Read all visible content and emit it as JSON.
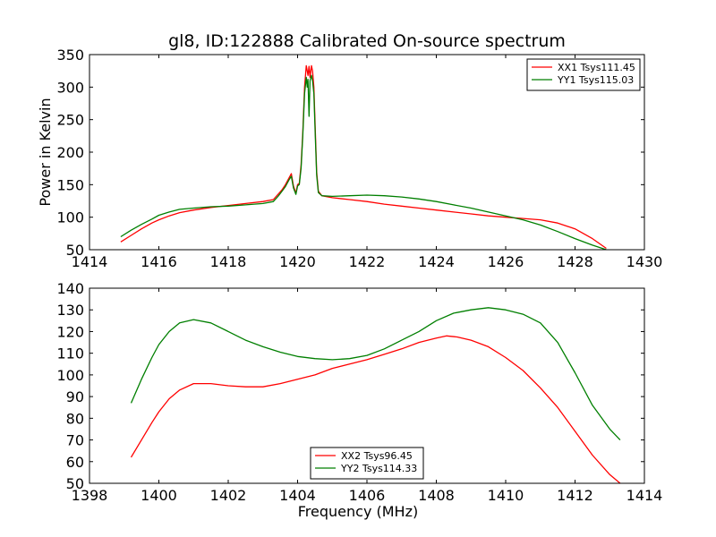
{
  "figure": {
    "title": "gl8, ID:122888 Calibrated On-source spectrum"
  },
  "chart_data": [
    {
      "type": "line",
      "title": "gl8, ID:122888 Calibrated On-source spectrum",
      "xlabel": "",
      "ylabel": "Power in Kelvin",
      "xlim": [
        1414,
        1430
      ],
      "ylim": [
        50,
        350
      ],
      "xticks": [
        1414,
        1416,
        1418,
        1420,
        1422,
        1424,
        1426,
        1428,
        1430
      ],
      "yticks": [
        50,
        100,
        150,
        200,
        250,
        300,
        350
      ],
      "grid": false,
      "legend_position": "top-right",
      "colors": {
        "series0": "#ff0000",
        "series1": "#007f00"
      },
      "series": [
        {
          "name": "XX1 Tsys111.45",
          "color": "#ff0000",
          "x": [
            1414.9,
            1415.2,
            1415.5,
            1415.8,
            1416.0,
            1416.3,
            1416.6,
            1417.0,
            1417.5,
            1418.0,
            1418.5,
            1419.0,
            1419.3,
            1419.45,
            1419.55,
            1419.65,
            1419.75,
            1419.82,
            1419.88,
            1419.95,
            1420.0,
            1420.05,
            1420.1,
            1420.15,
            1420.2,
            1420.25,
            1420.28,
            1420.3,
            1420.33,
            1420.36,
            1420.4,
            1420.43,
            1420.47,
            1420.5,
            1420.55,
            1420.6,
            1420.7,
            1421.0,
            1421.5,
            1422.0,
            1422.5,
            1423.0,
            1423.5,
            1424.0,
            1424.5,
            1425.0,
            1425.5,
            1426.0,
            1426.5,
            1427.0,
            1427.5,
            1428.0,
            1428.5,
            1428.9
          ],
          "y": [
            62,
            72,
            82,
            91,
            96,
            102,
            107,
            111,
            115,
            118,
            121,
            124,
            127,
            136,
            142,
            150,
            160,
            167,
            148,
            137,
            150,
            152,
            180,
            230,
            300,
            333,
            325,
            318,
            332,
            315,
            333,
            325,
            300,
            250,
            170,
            140,
            133,
            130,
            127,
            124,
            120,
            117,
            114,
            111,
            108,
            105,
            102,
            100,
            98,
            96,
            91,
            82,
            67,
            52
          ]
        },
        {
          "name": "YY1 Tsys115.03",
          "color": "#007f00",
          "x": [
            1414.9,
            1415.2,
            1415.5,
            1415.8,
            1416.0,
            1416.3,
            1416.6,
            1417.0,
            1417.5,
            1418.0,
            1418.5,
            1419.0,
            1419.3,
            1419.45,
            1419.55,
            1419.65,
            1419.75,
            1419.82,
            1419.88,
            1419.95,
            1420.0,
            1420.05,
            1420.1,
            1420.15,
            1420.2,
            1420.25,
            1420.28,
            1420.3,
            1420.33,
            1420.36,
            1420.4,
            1420.43,
            1420.47,
            1420.5,
            1420.55,
            1420.6,
            1420.7,
            1421.0,
            1421.5,
            1422.0,
            1422.5,
            1423.0,
            1423.5,
            1424.0,
            1424.5,
            1425.0,
            1425.5,
            1426.0,
            1426.5,
            1427.0,
            1427.5,
            1428.0,
            1428.5,
            1428.9
          ],
          "y": [
            70,
            80,
            89,
            97,
            103,
            108,
            112,
            114,
            116,
            117,
            119,
            121,
            124,
            133,
            140,
            147,
            157,
            163,
            145,
            135,
            148,
            150,
            175,
            225,
            290,
            315,
            300,
            312,
            255,
            310,
            318,
            310,
            290,
            240,
            165,
            138,
            133,
            132,
            133,
            134,
            133,
            131,
            128,
            124,
            119,
            114,
            108,
            102,
            96,
            88,
            78,
            67,
            57,
            50
          ]
        }
      ]
    },
    {
      "type": "line",
      "title": "",
      "xlabel": "Frequency (MHz)",
      "ylabel": "",
      "xlim": [
        1398,
        1414
      ],
      "ylim": [
        50,
        140
      ],
      "xticks": [
        1398,
        1400,
        1402,
        1404,
        1406,
        1408,
        1410,
        1412,
        1414
      ],
      "yticks": [
        50,
        60,
        70,
        80,
        90,
        100,
        110,
        120,
        130,
        140
      ],
      "grid": false,
      "legend_position": "bottom-center",
      "colors": {
        "series0": "#ff0000",
        "series1": "#007f00"
      },
      "series": [
        {
          "name": "XX2 Tsys96.45",
          "color": "#ff0000",
          "x": [
            1399.2,
            1399.5,
            1399.8,
            1400.0,
            1400.3,
            1400.6,
            1401.0,
            1401.5,
            1402.0,
            1402.5,
            1403.0,
            1403.5,
            1404.0,
            1404.5,
            1405.0,
            1405.5,
            1406.0,
            1406.5,
            1407.0,
            1407.5,
            1408.0,
            1408.3,
            1408.6,
            1409.0,
            1409.5,
            1410.0,
            1410.5,
            1411.0,
            1411.5,
            1412.0,
            1412.5,
            1413.0,
            1413.3
          ],
          "y": [
            62,
            70,
            78,
            83,
            89,
            93,
            96,
            96,
            95,
            94.5,
            94.5,
            96,
            98,
            100,
            103,
            105,
            107,
            109.5,
            112,
            115,
            117,
            118,
            117.5,
            116,
            113,
            108,
            102,
            94,
            85,
            74,
            63,
            54,
            50
          ]
        },
        {
          "name": "YY2 Tsys114.33",
          "color": "#007f00",
          "x": [
            1399.2,
            1399.5,
            1399.8,
            1400.0,
            1400.3,
            1400.6,
            1401.0,
            1401.5,
            1402.0,
            1402.5,
            1403.0,
            1403.5,
            1404.0,
            1404.5,
            1405.0,
            1405.5,
            1406.0,
            1406.5,
            1407.0,
            1407.5,
            1408.0,
            1408.5,
            1409.0,
            1409.5,
            1410.0,
            1410.5,
            1411.0,
            1411.5,
            1412.0,
            1412.5,
            1413.0,
            1413.3
          ],
          "y": [
            87,
            98,
            108,
            114,
            120,
            124,
            125.5,
            124,
            120,
            116,
            113,
            110.5,
            108.5,
            107.5,
            107,
            107.5,
            109,
            112,
            116,
            120,
            125,
            128.5,
            130,
            131,
            130,
            128,
            124,
            115,
            101,
            86,
            75,
            70
          ]
        }
      ]
    }
  ]
}
